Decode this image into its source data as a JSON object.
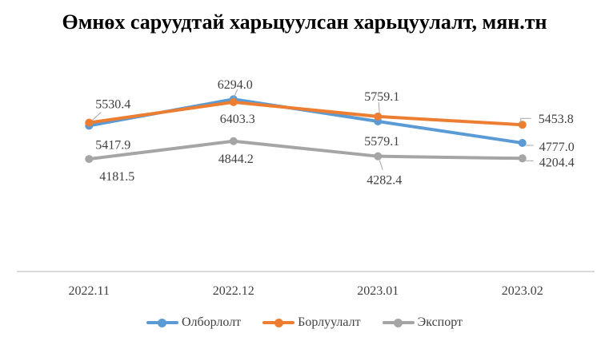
{
  "chart_data": {
    "type": "line",
    "title": "Өмнөх саруудтай харьцуулсан харьцуулалт, мян.тн",
    "categories": [
      "2022.11",
      "2022.12",
      "2023.01",
      "2023.02"
    ],
    "series": [
      {
        "name": "Олборлолт",
        "color": "#5B9BD5",
        "values": [
          5417.9,
          6403.3,
          5579.1,
          4777.0
        ]
      },
      {
        "name": "Борлуулалт",
        "color": "#ED7D31",
        "values": [
          5530.4,
          6294.0,
          5759.1,
          5453.8
        ]
      },
      {
        "name": "Экспорт",
        "color": "#A5A5A5",
        "values": [
          4181.5,
          4844.2,
          4282.4,
          4204.4
        ]
      }
    ],
    "data_labels": true,
    "ylim": [
      0,
      7000
    ],
    "grid": false,
    "y_axis_visible": false,
    "legend_position": "bottom",
    "axis_color": "#D9D9D9",
    "leader_line_color": "#A6A6A6",
    "label_color": "#404040",
    "title_color": "#000000"
  }
}
